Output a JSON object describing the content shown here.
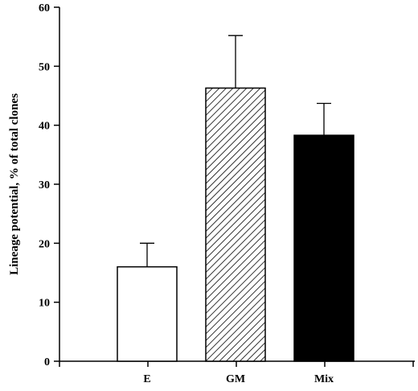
{
  "chart_data": {
    "type": "bar",
    "title": "",
    "xlabel": "",
    "ylabel": "Lineage potential, % of total clones",
    "categories": [
      "E",
      "GM",
      "Mix"
    ],
    "values": [
      16,
      46.3,
      38.3
    ],
    "error_upper": [
      20,
      55.2,
      43.7
    ],
    "bar_fills": [
      "white",
      "hatched",
      "black"
    ],
    "ylim": [
      0,
      60
    ],
    "yticks": [
      "0",
      "10",
      "20",
      "30",
      "40",
      "50",
      "60"
    ],
    "grid": false,
    "legend": "none"
  }
}
